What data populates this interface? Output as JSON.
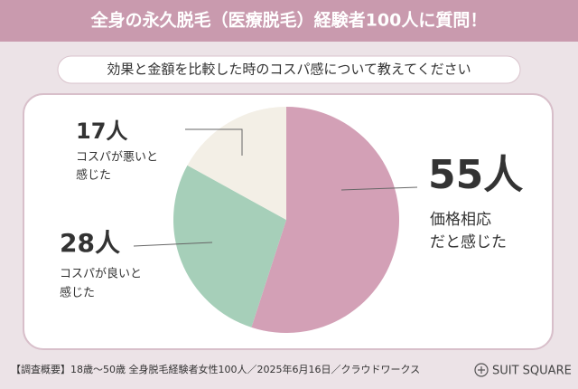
{
  "header": {
    "title": "全身の永久脱毛（医療脱毛）経験者100人に質問！",
    "subtitle": "効果と金額を比較した時のコスパ感について教えてください"
  },
  "chart_data": {
    "type": "pie",
    "categories": [
      [
        "価格相応",
        "だと感じた"
      ],
      [
        "コスパが良いと",
        "感じた"
      ],
      [
        "コスパが悪いと",
        "感じた"
      ]
    ],
    "values": [
      55,
      28,
      17
    ],
    "value_labels": [
      "55人",
      "28人",
      "17人"
    ],
    "colors": [
      "#d3a0b6",
      "#a6cfb9",
      "#f3efe6"
    ]
  },
  "footer": {
    "note": "【調査概要】18歳～50歳 全身脱毛経験者女性100人／2025年6月16日／クラウドワークス",
    "brand": "SUIT SQUARE"
  }
}
